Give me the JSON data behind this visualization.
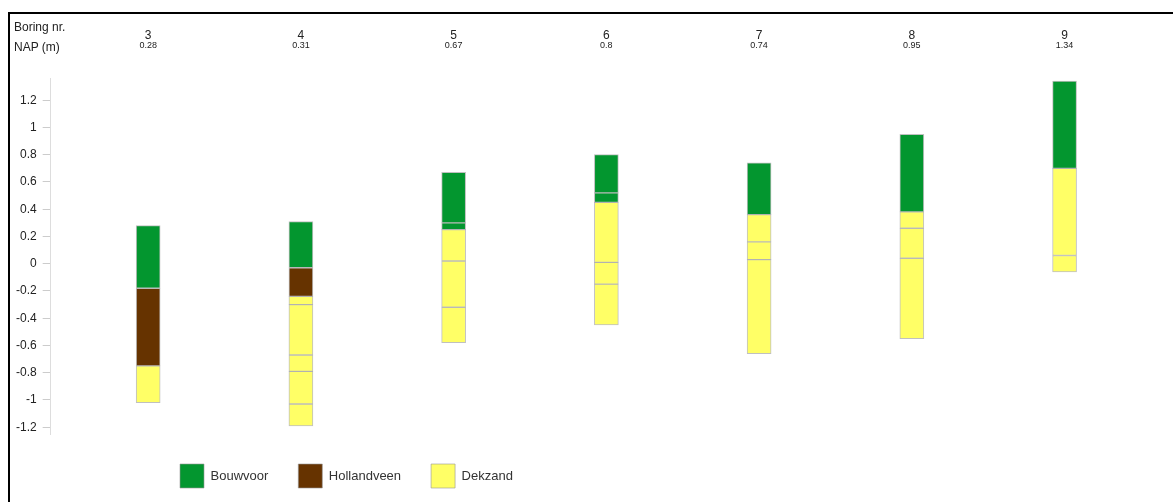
{
  "chart_data": {
    "type": "bar",
    "xlabel": "Boring nr.",
    "categories": [
      "3",
      "4",
      "5",
      "6",
      "7",
      "8",
      "9"
    ],
    "series": [
      {
        "name": "Bouwvoor",
        "color": "#03962f",
        "base": [
          -0.18,
          -0.03,
          0.3,
          0.52,
          0.36,
          0.38,
          0.7
        ],
        "values": [
          0.46,
          0.34,
          0.37,
          0.28,
          0.38,
          0.57,
          0.64
        ]
      },
      {
        "color": "#03962f",
        "base": [
          null,
          null,
          0.25,
          0.45,
          null,
          null,
          null
        ],
        "values": [
          null,
          null,
          0.05,
          0.07,
          null,
          null,
          null
        ]
      },
      {
        "name": "Hollandveen",
        "color": "#663300",
        "base": [
          -0.75,
          -0.24,
          null,
          null,
          null,
          null,
          null
        ],
        "values": [
          0.57,
          0.21,
          null,
          null,
          null,
          null,
          null
        ]
      },
      {
        "name": "Dekzand",
        "color": "#ffff66",
        "base": [
          -1.02,
          -0.3,
          0.02,
          0.01,
          0.16,
          0.26,
          0.06
        ],
        "values": [
          0.27,
          0.06,
          0.23,
          0.44,
          0.2,
          0.12,
          0.64
        ]
      },
      {
        "color": "#ffff66",
        "base": [
          null,
          -0.67,
          -0.32,
          -0.15,
          0.03,
          0.04,
          -0.06
        ],
        "values": [
          null,
          0.37,
          0.34,
          0.16,
          0.13,
          0.22,
          0.12
        ]
      },
      {
        "color": "#ffff66",
        "base": [
          null,
          -0.79,
          -0.58,
          -0.45,
          -0.66,
          -0.55,
          null
        ],
        "values": [
          null,
          0.12,
          0.26,
          0.3,
          0.69,
          0.59,
          null
        ]
      },
      {
        "color": "#ffff66",
        "base": [
          null,
          -1.03,
          null,
          null,
          null,
          null,
          null
        ],
        "values": [
          null,
          0.24,
          null,
          null,
          null,
          null,
          null
        ]
      },
      {
        "color": "#ffff66",
        "base": [
          null,
          -1.19,
          null,
          null,
          null,
          null,
          null
        ],
        "values": [
          null,
          0.16,
          null,
          null,
          null,
          null,
          null
        ]
      }
    ],
    "ylim": [
      -1.25,
      1.36
    ],
    "yticks": [
      {
        "value": -1.2,
        "label": "-1.2"
      },
      {
        "value": -1,
        "label": "-1"
      },
      {
        "value": -0.8,
        "label": "-0.8"
      },
      {
        "value": -0.6,
        "label": "-0.6"
      },
      {
        "value": -0.4,
        "label": "-0.4"
      },
      {
        "value": -0.2,
        "label": "-0.2"
      },
      0,
      {
        "value": 0.2,
        "label": "0.2"
      },
      {
        "value": 0.4,
        "label": "0.4"
      },
      {
        "value": 0.6,
        "label": "0.6"
      },
      {
        "value": 0.8,
        "label": "0.8"
      },
      1,
      {
        "value": 1.2,
        "label": "1.2"
      }
    ],
    "grid": false,
    "legend": "bottom left",
    "annotations": [
      "NAP (m)",
      "0.28",
      "0.31",
      "0.67",
      "0.8",
      "0.74",
      "0.95",
      "1.34"
    ]
  }
}
